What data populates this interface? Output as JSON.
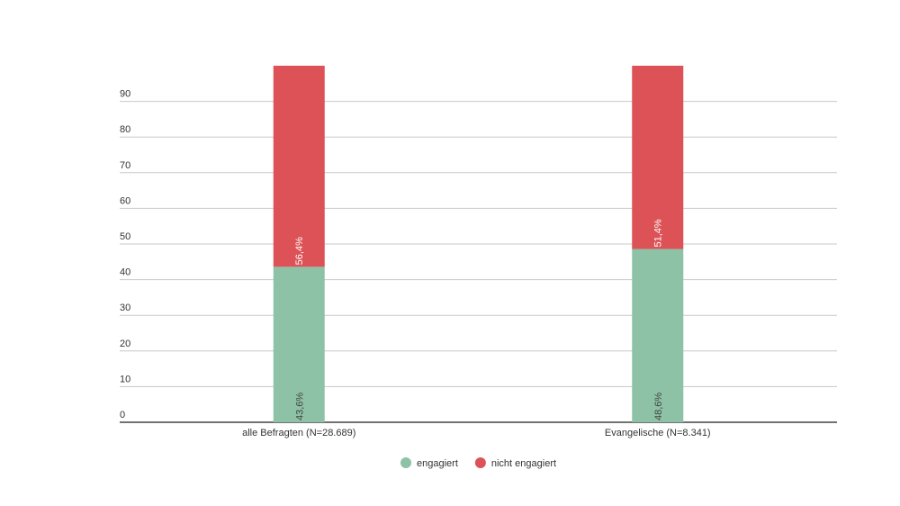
{
  "chart_data": {
    "type": "stacked_bar",
    "categories": [
      "alle Befragten (N=28.689)",
      "Evangelische (N=8.341)"
    ],
    "series": [
      {
        "name": "engagiert",
        "color": "#8dc2a6",
        "values": [
          43.6,
          48.6
        ],
        "value_labels": [
          "43,6%",
          "48,6%"
        ]
      },
      {
        "name": "nicht engagiert",
        "color": "#dc5256",
        "values": [
          56.4,
          51.4
        ],
        "value_labels": [
          "56,4%",
          "51,4%"
        ]
      }
    ],
    "ylim": [
      0,
      100
    ],
    "yticks": [
      0,
      10,
      20,
      30,
      40,
      50,
      60,
      70,
      80,
      90
    ],
    "grid": true,
    "legend": "bottom"
  }
}
